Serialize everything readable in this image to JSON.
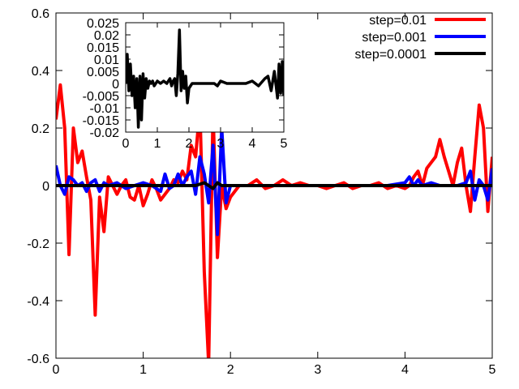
{
  "chart_data": {
    "type": "line",
    "main": {
      "xlim": [
        0,
        5
      ],
      "ylim": [
        -0.6,
        0.6
      ],
      "xticks": [
        0,
        1,
        2,
        3,
        4,
        5
      ],
      "xtick_labels": [
        "0",
        "1",
        "2",
        "3",
        "4",
        "5"
      ],
      "yticks": [
        -0.6,
        -0.4,
        -0.2,
        0,
        0.2,
        0.4,
        0.6
      ],
      "ytick_labels": [
        "-0.6",
        "-0.4",
        "-0.2",
        "0",
        "0.2",
        "0.4",
        "0.6"
      ],
      "grid": false,
      "legend_position": "top-right",
      "series": [
        {
          "name": "step=0.01",
          "color": "#ff0000",
          "x": [
            0,
            0.05,
            0.1,
            0.15,
            0.2,
            0.25,
            0.3,
            0.35,
            0.4,
            0.45,
            0.5,
            0.55,
            0.6,
            0.65,
            0.7,
            0.75,
            0.8,
            0.85,
            0.9,
            0.95,
            1.0,
            1.05,
            1.1,
            1.15,
            1.2,
            1.25,
            1.3,
            1.35,
            1.4,
            1.45,
            1.5,
            1.55,
            1.6,
            1.65,
            1.7,
            1.75,
            1.8,
            1.85,
            1.9,
            1.95,
            2.0,
            2.1,
            2.2,
            2.3,
            2.4,
            2.5,
            2.6,
            2.7,
            2.8,
            2.9,
            3.0,
            3.1,
            3.2,
            3.3,
            3.4,
            3.5,
            3.6,
            3.7,
            3.8,
            3.9,
            4.0,
            4.05,
            4.1,
            4.15,
            4.2,
            4.25,
            4.3,
            4.35,
            4.4,
            4.45,
            4.5,
            4.55,
            4.6,
            4.65,
            4.7,
            4.75,
            4.8,
            4.85,
            4.9,
            4.95,
            5.0
          ],
          "y": [
            0.23,
            0.35,
            0.2,
            -0.24,
            0.2,
            0.08,
            0.12,
            0.03,
            -0.05,
            -0.45,
            -0.04,
            -0.16,
            0.03,
            0.0,
            -0.03,
            0.0,
            0.02,
            -0.04,
            -0.05,
            0.0,
            -0.07,
            -0.03,
            0.02,
            -0.01,
            -0.05,
            -0.03,
            -0.01,
            0.02,
            0.01,
            0.05,
            0.02,
            0.14,
            0.1,
            0.27,
            -0.3,
            -0.62,
            0.26,
            -0.25,
            0.0,
            -0.08,
            -0.04,
            0.0,
            0.0,
            0.02,
            -0.01,
            0.0,
            0.02,
            0.0,
            0.01,
            0.0,
            0.0,
            -0.01,
            0.0,
            0.01,
            -0.01,
            0.0,
            0.0,
            0.01,
            -0.01,
            0.0,
            -0.01,
            0.0,
            0.03,
            0.05,
            0.0,
            0.06,
            0.08,
            0.1,
            0.16,
            0.1,
            0.05,
            0.0,
            0.08,
            0.13,
            0.0,
            -0.09,
            0.1,
            0.28,
            0.2,
            -0.09,
            0.1
          ]
        },
        {
          "name": "step=0.001",
          "color": "#0000ff",
          "x": [
            0,
            0.05,
            0.1,
            0.15,
            0.2,
            0.25,
            0.3,
            0.35,
            0.4,
            0.45,
            0.5,
            0.55,
            0.6,
            0.7,
            0.8,
            0.9,
            1.0,
            1.1,
            1.2,
            1.25,
            1.3,
            1.35,
            1.4,
            1.45,
            1.5,
            1.55,
            1.6,
            1.65,
            1.7,
            1.75,
            1.8,
            1.85,
            1.9,
            1.95,
            2.0,
            2.2,
            2.4,
            2.6,
            2.8,
            3.0,
            3.2,
            3.4,
            3.6,
            3.8,
            4.0,
            4.05,
            4.1,
            4.15,
            4.2,
            4.3,
            4.4,
            4.5,
            4.6,
            4.7,
            4.75,
            4.8,
            4.85,
            4.9,
            4.95,
            5.0
          ],
          "y": [
            0.07,
            0.0,
            -0.03,
            0.03,
            0.02,
            0.0,
            0.01,
            -0.02,
            0.01,
            0.02,
            -0.02,
            0.01,
            0.0,
            0.01,
            -0.01,
            0.0,
            0.01,
            0.0,
            -0.02,
            0.04,
            -0.01,
            0.0,
            0.04,
            0.0,
            0.03,
            0.05,
            -0.03,
            0.1,
            0.04,
            -0.06,
            0.14,
            -0.17,
            0.2,
            -0.06,
            0.0,
            0.0,
            0.0,
            0.0,
            0.0,
            0.0,
            0.0,
            0.0,
            0.0,
            0.0,
            0.01,
            0.03,
            0.0,
            0.02,
            0.0,
            0.01,
            0.0,
            0.0,
            0.0,
            0.01,
            0.05,
            -0.05,
            0.02,
            0.0,
            -0.05,
            0.06
          ]
        },
        {
          "name": "step=0.0001",
          "color": "#000000",
          "x": [
            0,
            0.25,
            0.5,
            0.75,
            1.0,
            1.25,
            1.5,
            1.6,
            1.7,
            1.75,
            1.8,
            1.85,
            1.9,
            2.0,
            2.5,
            3.0,
            3.5,
            4.0,
            4.5,
            5.0
          ],
          "y": [
            0.0,
            0.0,
            0.0,
            0.0,
            0.0,
            0.0,
            0.0,
            0.0,
            0.01,
            0.0,
            -0.01,
            0.01,
            0.0,
            0.0,
            0.0,
            0.0,
            0.0,
            0.0,
            0.0,
            0.0
          ]
        }
      ]
    },
    "inset": {
      "xlim": [
        0,
        5
      ],
      "ylim": [
        -0.02,
        0.025
      ],
      "xticks": [
        0,
        1,
        2,
        3,
        4,
        5
      ],
      "xtick_labels": [
        "0",
        "1",
        "2",
        "3",
        "4",
        "5"
      ],
      "yticks": [
        -0.02,
        -0.015,
        -0.01,
        -0.005,
        0,
        0.005,
        0.01,
        0.015,
        0.02,
        0.025
      ],
      "ytick_labels": [
        "-0.02",
        "-0.015",
        "-0.01",
        "-0.005",
        "0",
        "0.005",
        "0.01",
        "0.015",
        "0.02",
        "0.025"
      ],
      "series": [
        {
          "name": "step=0.0001",
          "color": "#000000",
          "x": [
            0,
            0.05,
            0.1,
            0.15,
            0.2,
            0.25,
            0.3,
            0.35,
            0.4,
            0.45,
            0.5,
            0.55,
            0.6,
            0.65,
            0.7,
            0.75,
            0.8,
            0.85,
            0.9,
            0.95,
            1.0,
            1.1,
            1.2,
            1.3,
            1.4,
            1.45,
            1.5,
            1.55,
            1.6,
            1.65,
            1.7,
            1.75,
            1.8,
            1.85,
            1.9,
            1.95,
            2.0,
            2.1,
            2.2,
            2.3,
            2.4,
            2.5,
            2.6,
            2.7,
            2.8,
            2.9,
            3.0,
            3.2,
            3.4,
            3.6,
            3.8,
            4.0,
            4.2,
            4.4,
            4.5,
            4.6,
            4.7,
            4.8,
            4.85,
            4.9,
            4.95,
            5.0
          ],
          "y": [
            0.0,
            0.012,
            -0.003,
            0.008,
            -0.005,
            0.003,
            -0.01,
            0.002,
            -0.018,
            0.003,
            -0.015,
            0.004,
            -0.006,
            0.002,
            -0.002,
            0.001,
            0.0,
            0.001,
            -0.001,
            0.0,
            0.001,
            0.0,
            0.001,
            0.0,
            0.002,
            -0.001,
            0.001,
            0.002,
            -0.005,
            0.004,
            0.022,
            -0.003,
            0.005,
            -0.002,
            0.003,
            -0.008,
            -0.002,
            0.0,
            0.0,
            0.0,
            0.0,
            0.0,
            0.0,
            0.0,
            0.0,
            -0.001,
            0.001,
            0.0,
            0.0,
            0.0,
            0.0,
            0.001,
            -0.001,
            0.002,
            0.003,
            -0.003,
            0.005,
            -0.006,
            0.008,
            -0.004,
            0.009,
            -0.005
          ]
        }
      ]
    }
  }
}
